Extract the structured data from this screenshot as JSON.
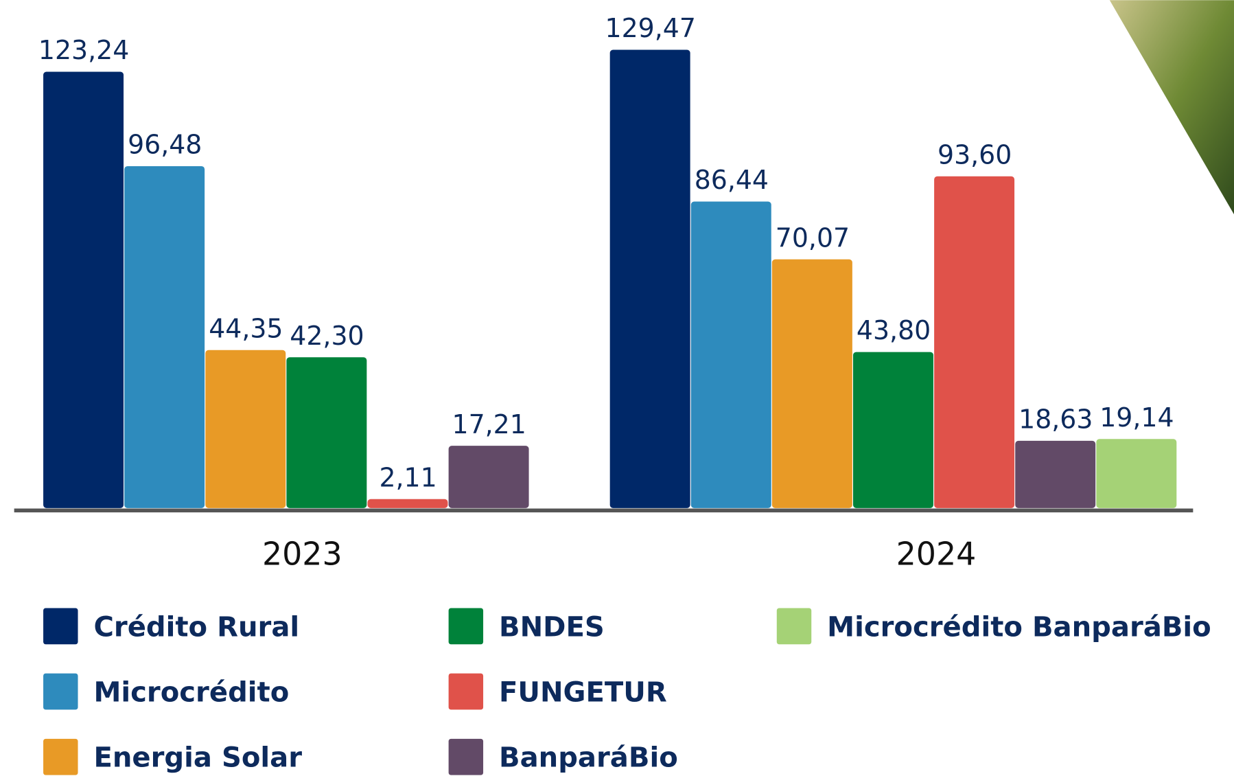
{
  "chart_data": {
    "type": "bar",
    "categories": [
      "2023",
      "2024"
    ],
    "series": [
      {
        "name": "Crédito Rural",
        "color": "#002868",
        "values": [
          123.24,
          129.47
        ],
        "value_labels": [
          "123,24",
          "129,47"
        ]
      },
      {
        "name": "Microcrédito",
        "color": "#2e8bbd",
        "values": [
          96.48,
          86.44
        ],
        "value_labels": [
          "96,48",
          "86,44"
        ]
      },
      {
        "name": "Energia Solar",
        "color": "#e89a26",
        "values": [
          44.35,
          70.07
        ],
        "value_labels": [
          "44,35",
          "70,07"
        ]
      },
      {
        "name": "BNDES",
        "color": "#00823a",
        "values": [
          42.3,
          43.8
        ],
        "value_labels": [
          "42,30",
          "43,80"
        ]
      },
      {
        "name": "FUNGETUR",
        "color": "#e0524a",
        "values": [
          2.11,
          93.6
        ],
        "value_labels": [
          "2,11",
          "93,60"
        ]
      },
      {
        "name": "BanparáBio",
        "color": "#624a67",
        "values": [
          17.21,
          18.63
        ],
        "value_labels": [
          "17,21",
          "18,63"
        ]
      },
      {
        "name": "Microcrédito BanparáBio",
        "color": "#a5d276",
        "values": [
          null,
          19.14
        ],
        "value_labels": [
          null,
          "19,14"
        ]
      }
    ]
  }
}
